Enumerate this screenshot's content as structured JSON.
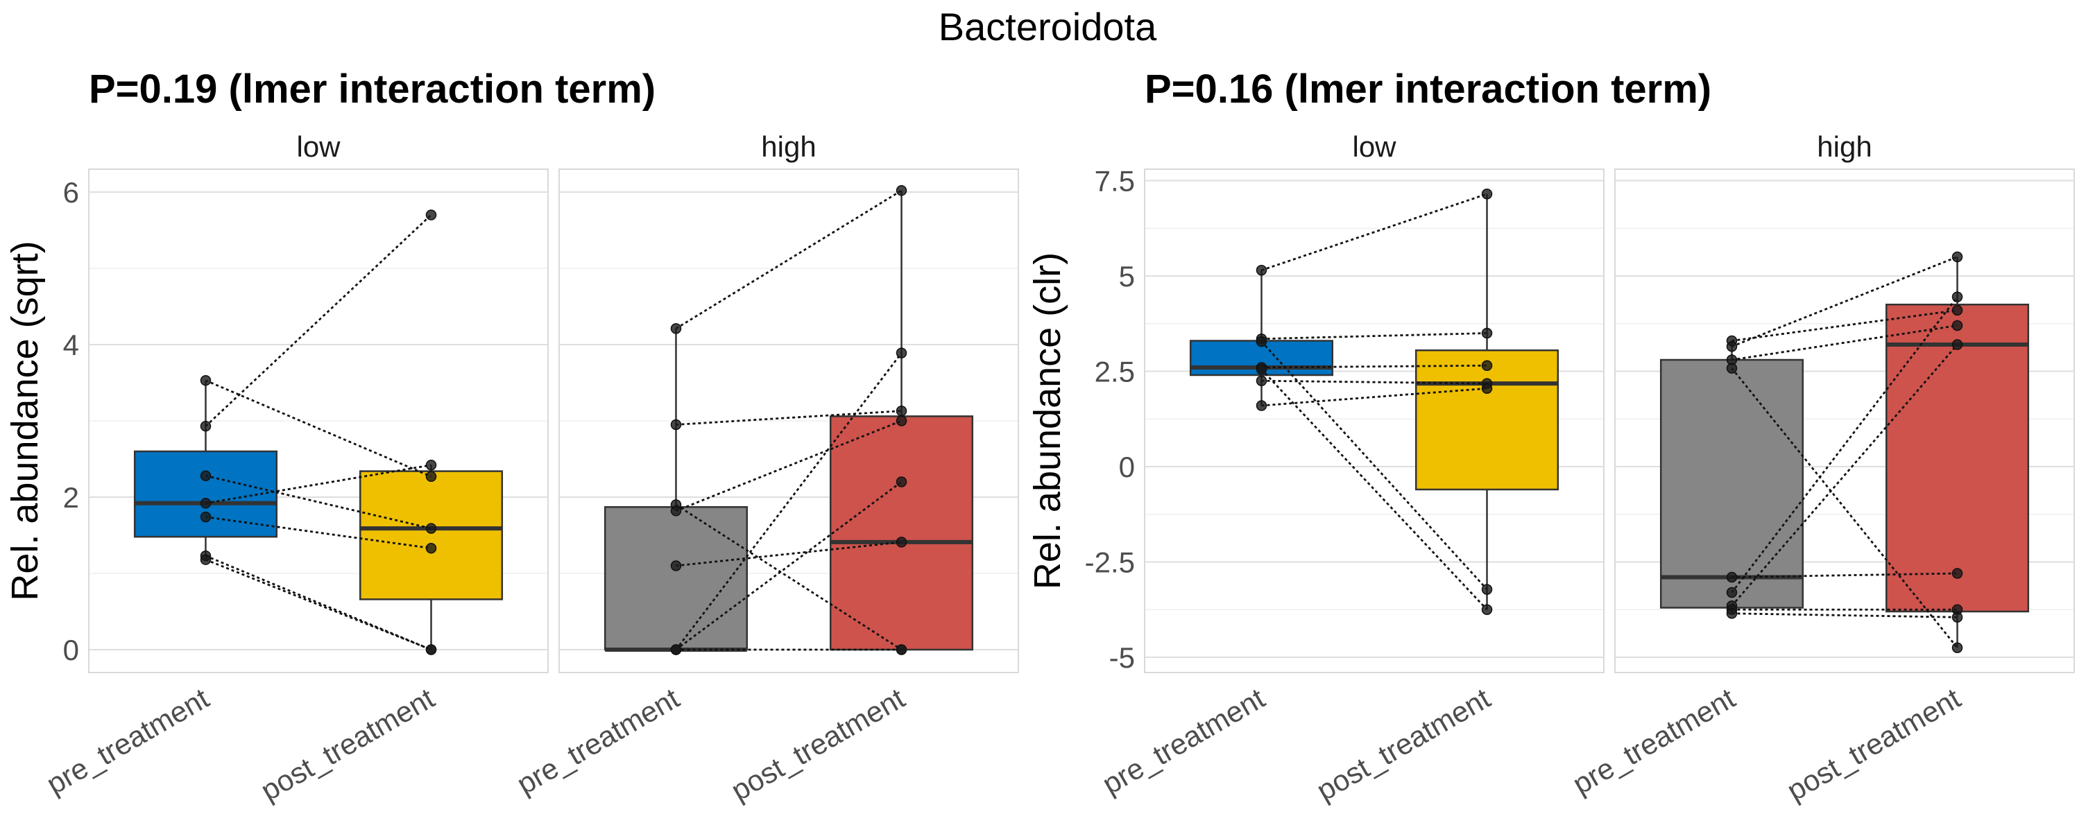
{
  "title": "Bacteroidota",
  "colors": {
    "low_pre_treatment": "#0073c2",
    "low_post_treatment": "#efc000",
    "high_pre_treatment": "#868686",
    "high_post_treatment": "#cd534c"
  },
  "chart_data": [
    {
      "type": "box",
      "subtitle": "P=0.19 (lmer interaction term)",
      "ylabel": "Rel. abundance (sqrt)",
      "ylim": [
        -0.3,
        6.3
      ],
      "yticks": [
        0,
        2,
        4,
        6
      ],
      "yticklabels": [
        "0",
        "2",
        "4",
        "6"
      ],
      "categories": [
        "pre_treatment",
        "post_treatment"
      ],
      "grid": true,
      "facets": [
        {
          "label": "low",
          "boxes": [
            {
              "group": "pre_treatment",
              "q1": 1.48,
              "median": 1.92,
              "q3": 2.6,
              "whisker_low": 1.18,
              "whisker_high": 3.53
            },
            {
              "group": "post_treatment",
              "q1": 0.66,
              "median": 1.59,
              "q3": 2.34,
              "whisker_low": 0.0,
              "whisker_high": 2.42
            }
          ],
          "pairs": [
            [
              3.53,
              2.27
            ],
            [
              2.93,
              5.7
            ],
            [
              2.28,
              1.59
            ],
            [
              1.92,
              2.42
            ],
            [
              1.74,
              1.33
            ],
            [
              1.23,
              0.0
            ],
            [
              1.18,
              0.0
            ]
          ]
        },
        {
          "label": "high",
          "boxes": [
            {
              "group": "pre_treatment",
              "q1": 0.0,
              "median": 0.0,
              "q3": 1.87,
              "whisker_low": 0.0,
              "whisker_high": 4.21
            },
            {
              "group": "post_treatment",
              "q1": 0.0,
              "median": 1.41,
              "q3": 3.06,
              "whisker_low": 0.0,
              "whisker_high": 6.02
            }
          ],
          "pairs": [
            [
              4.21,
              6.02
            ],
            [
              2.95,
              3.13
            ],
            [
              1.9,
              0.0
            ],
            [
              1.82,
              3.0
            ],
            [
              1.1,
              1.41
            ],
            [
              0.0,
              3.89
            ],
            [
              0.0,
              2.2
            ],
            [
              0.0,
              0.0
            ]
          ]
        }
      ]
    },
    {
      "type": "box",
      "subtitle": "P=0.16 (lmer interaction term)",
      "ylabel": "Rel. abundance (clr)",
      "ylim": [
        -5.4,
        7.8
      ],
      "yticks": [
        -5,
        -2.5,
        0,
        2.5,
        5,
        7.5
      ],
      "yticklabels": [
        "-5",
        "-2.5",
        "0",
        "2.5",
        "5",
        "7.5"
      ],
      "categories": [
        "pre_treatment",
        "post_treatment"
      ],
      "grid": true,
      "facets": [
        {
          "label": "low",
          "boxes": [
            {
              "group": "pre_treatment",
              "q1": 2.4,
              "median": 2.6,
              "q3": 3.3,
              "whisker_low": 1.6,
              "whisker_high": 5.15
            },
            {
              "group": "post_treatment",
              "q1": -0.6,
              "median": 2.18,
              "q3": 3.05,
              "whisker_low": -3.75,
              "whisker_high": 7.15
            }
          ],
          "pairs": [
            [
              5.15,
              7.15
            ],
            [
              3.35,
              3.5
            ],
            [
              3.28,
              -3.22
            ],
            [
              2.6,
              2.65
            ],
            [
              2.55,
              -3.75
            ],
            [
              2.25,
              2.18
            ],
            [
              1.6,
              2.05
            ]
          ]
        },
        {
          "label": "high",
          "boxes": [
            {
              "group": "pre_treatment",
              "q1": -3.7,
              "median": -2.9,
              "q3": 2.8,
              "whisker_low": -3.85,
              "whisker_high": 3.3
            },
            {
              "group": "post_treatment",
              "q1": -3.8,
              "median": 3.2,
              "q3": 4.25,
              "whisker_low": -4.75,
              "whisker_high": 5.5
            }
          ],
          "pairs": [
            [
              3.3,
              4.1
            ],
            [
              3.15,
              5.5
            ],
            [
              2.8,
              3.7
            ],
            [
              2.58,
              -4.75
            ],
            [
              -2.9,
              -2.8
            ],
            [
              -3.3,
              4.45
            ],
            [
              -3.65,
              3.2
            ],
            [
              -3.75,
              -3.75
            ],
            [
              -3.85,
              -3.95
            ]
          ]
        }
      ]
    }
  ]
}
